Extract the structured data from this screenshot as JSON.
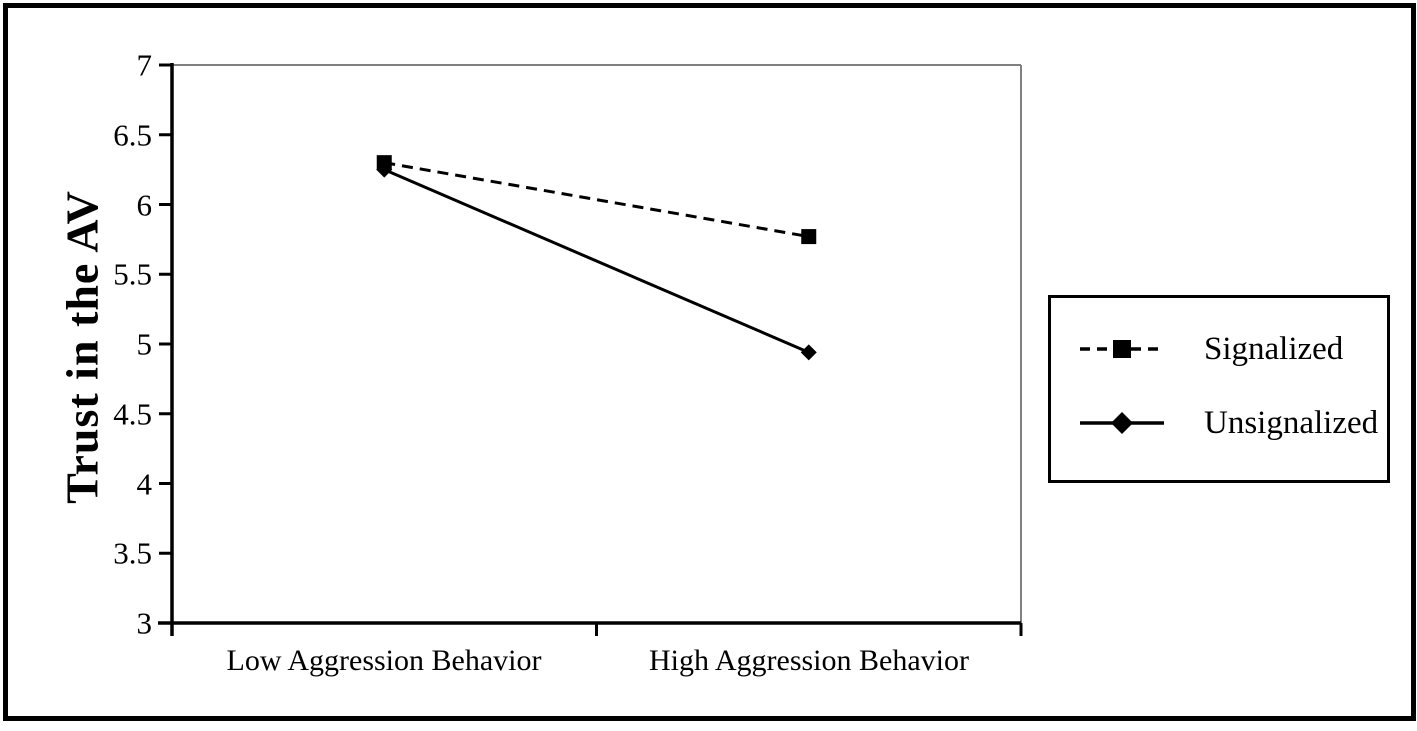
{
  "chart_data": {
    "type": "line",
    "title": "",
    "xlabel": "",
    "ylabel": "Trust in the AV",
    "categories": [
      "Low Aggression Behavior",
      "High Aggression Behavior"
    ],
    "series": [
      {
        "name": "Signalized",
        "values": [
          6.3,
          5.77
        ],
        "line_style": "dashed",
        "marker": "square",
        "color": "#000000"
      },
      {
        "name": "Unsignalized",
        "values": [
          6.25,
          4.94
        ],
        "line_style": "solid",
        "marker": "diamond",
        "color": "#000000"
      }
    ],
    "ylim": [
      3,
      7
    ],
    "ytick_step": 0.5,
    "yticks": [
      "7",
      "6.5",
      "6",
      "5.5",
      "5",
      "4.5",
      "4",
      "3.5",
      "3"
    ],
    "grid": false,
    "legend_position": "right-outside",
    "axis_color": "#000000",
    "plot_border_color": "#808080",
    "background_color": "#ffffff"
  }
}
